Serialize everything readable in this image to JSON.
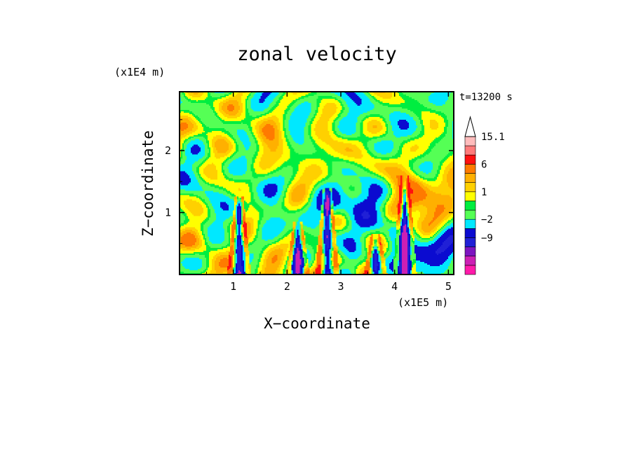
{
  "chart_data": {
    "type": "heatmap",
    "title": "zonal velocity",
    "xlabel": "X−coordinate",
    "ylabel": "Z−coordinate",
    "x_unit": "(x1E5 m)",
    "y_unit": "(x1E4 m)",
    "time_label": "t=13200 s",
    "xlim": [
      0.0,
      5.1
    ],
    "ylim": [
      0.0,
      2.95
    ],
    "x_ticks": [
      {
        "value": 1,
        "label": "1"
      },
      {
        "value": 2,
        "label": "2"
      },
      {
        "value": 3,
        "label": "3"
      },
      {
        "value": 4,
        "label": "4"
      },
      {
        "value": 5,
        "label": "5"
      }
    ],
    "y_ticks": [
      {
        "value": 1,
        "label": "1"
      },
      {
        "value": 2,
        "label": "2"
      }
    ],
    "colorbar": {
      "levels_bottom_to_top": [
        {
          "color": "#ff1aaa"
        },
        {
          "color": "#cc1fb4"
        },
        {
          "color": "#7d14c0"
        },
        {
          "color": "#2020d6",
          "label": "−9"
        },
        {
          "color": "#0b0bd0"
        },
        {
          "color": "#00e8ff",
          "label": "−2"
        },
        {
          "color": "#55ff55"
        },
        {
          "color": "#00ee40"
        },
        {
          "color": "#ffff00",
          "label": "1"
        },
        {
          "color": "#ffd000"
        },
        {
          "color": "#ffb000"
        },
        {
          "color": "#ff7a00",
          "label": "6"
        },
        {
          "color": "#ff1010"
        },
        {
          "color": "#ff7a7a"
        },
        {
          "color": "#ffbcbc",
          "label": "15.1"
        }
      ],
      "label_rows": {
        "15.1": 14,
        "6": 11,
        "1": 8,
        "−2": 5,
        "−9": 3
      }
    },
    "field_features": [
      {
        "kind": "jet",
        "x": 1.1,
        "z_top": 1.25,
        "sign": "neg"
      },
      {
        "kind": "jet",
        "x": 2.2,
        "z_top": 0.85,
        "sign": "neg"
      },
      {
        "kind": "jet",
        "x": 2.75,
        "z_top": 1.4,
        "sign": "neg"
      },
      {
        "kind": "jet",
        "x": 3.65,
        "z_top": 0.65,
        "sign": "neg"
      },
      {
        "kind": "jet",
        "x": 4.2,
        "z_top": 1.6,
        "sign": "neg"
      },
      {
        "kind": "blob",
        "x": 4.5,
        "z": 1.2,
        "sign": "pos"
      },
      {
        "kind": "blob",
        "x": 3.3,
        "z": 1.2,
        "sign": "neg"
      },
      {
        "kind": "blob",
        "x": 4.6,
        "z": 0.3,
        "sign": "neg"
      }
    ]
  }
}
